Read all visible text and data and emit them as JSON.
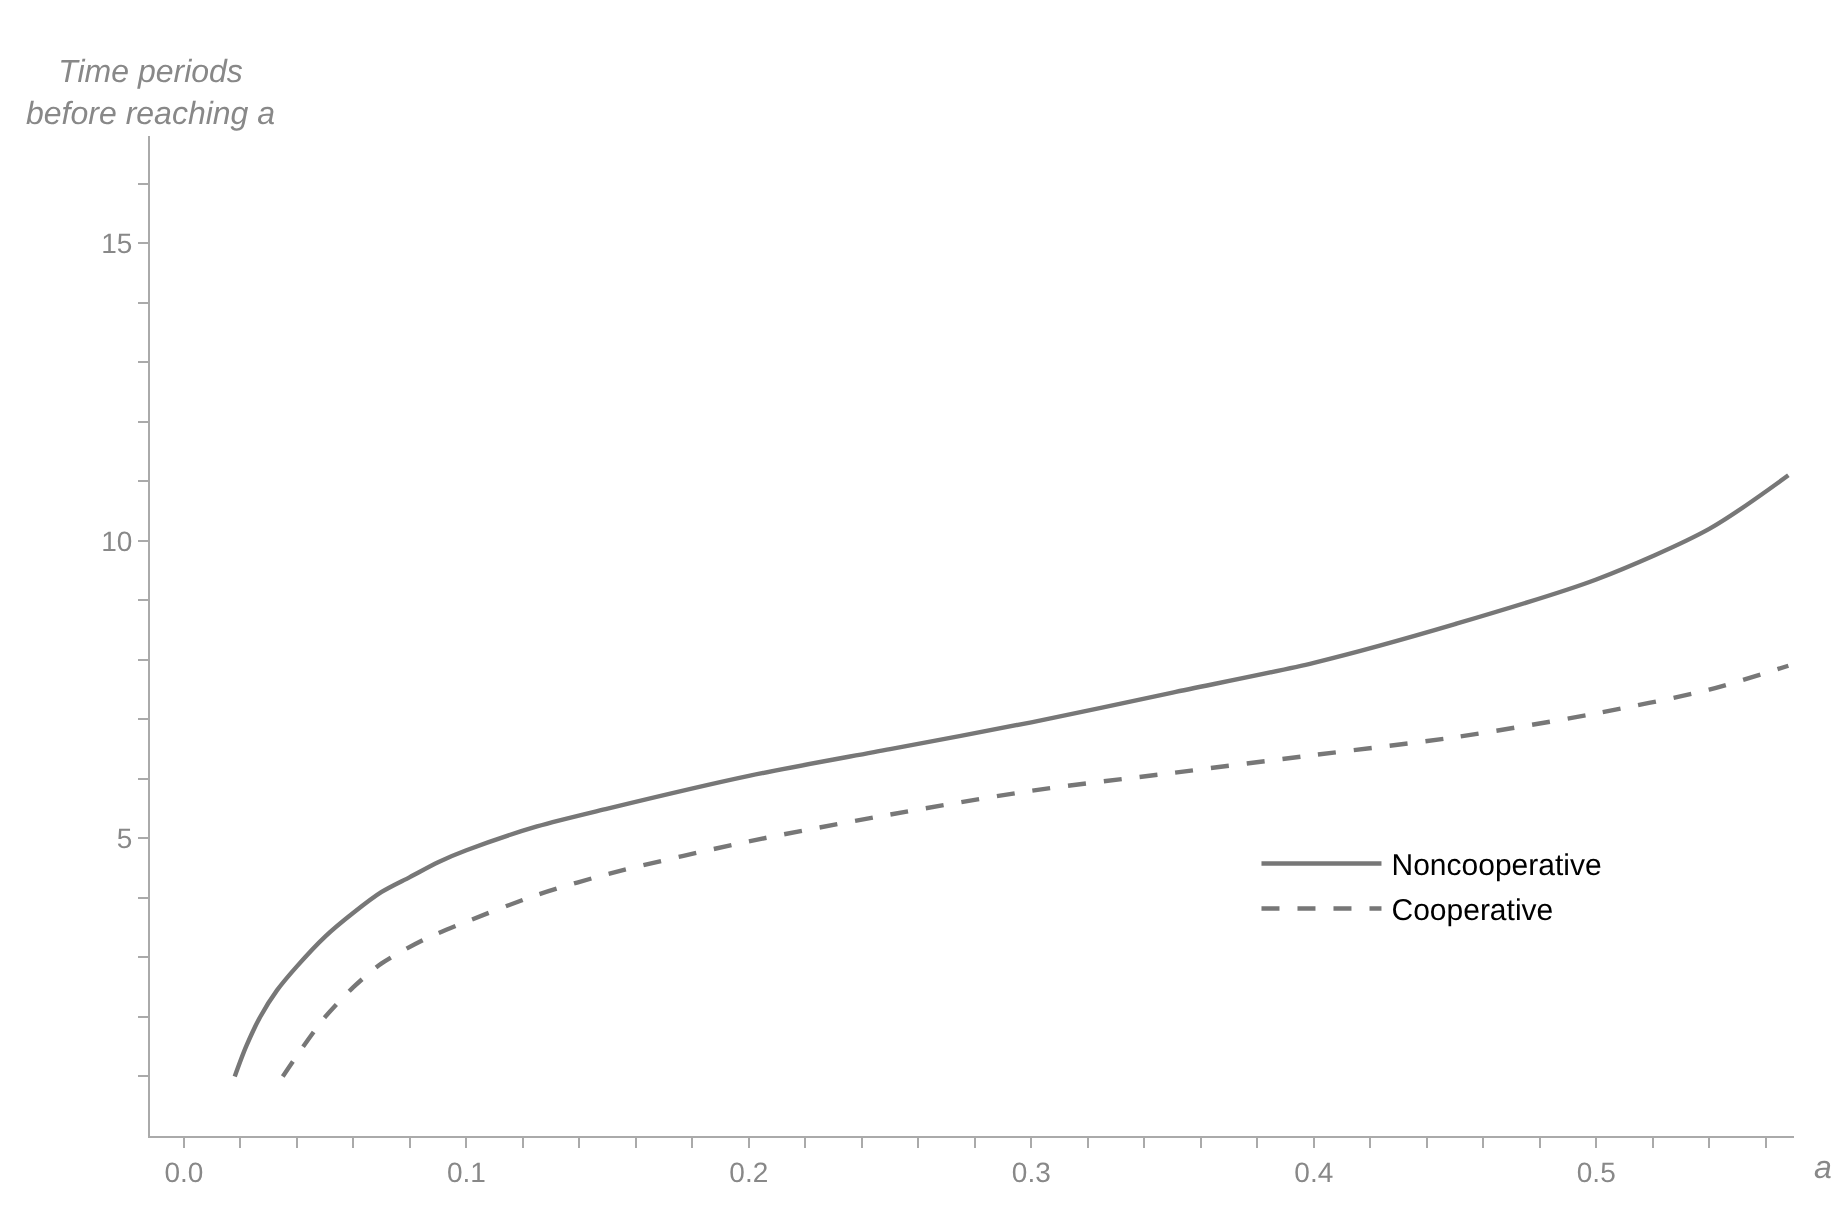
{
  "chart_data": {
    "type": "line",
    "xlabel": "a",
    "ylabel": "Time periods\nbefore reaching a",
    "xlim": [
      -0.012,
      0.57
    ],
    "ylim": [
      0,
      16.8
    ],
    "xticks": [
      {
        "value": 0.0,
        "label": "0.0"
      },
      {
        "value": 0.02,
        "label": null
      },
      {
        "value": 0.04,
        "label": null
      },
      {
        "value": 0.06,
        "label": null
      },
      {
        "value": 0.08,
        "label": null
      },
      0.1,
      {
        "value": 0.12,
        "label": null
      },
      {
        "value": 0.14,
        "label": null
      },
      {
        "value": 0.16,
        "label": null
      },
      {
        "value": 0.18,
        "label": null
      },
      0.2,
      {
        "value": 0.22,
        "label": null
      },
      {
        "value": 0.24,
        "label": null
      },
      {
        "value": 0.26,
        "label": null
      },
      {
        "value": 0.28,
        "label": null
      },
      0.3,
      {
        "value": 0.32,
        "label": null
      },
      {
        "value": 0.34,
        "label": null
      },
      {
        "value": 0.36,
        "label": null
      },
      {
        "value": 0.38,
        "label": null
      },
      0.4,
      {
        "value": 0.42,
        "label": null
      },
      {
        "value": 0.44,
        "label": null
      },
      {
        "value": 0.46,
        "label": null
      },
      {
        "value": 0.48,
        "label": null
      },
      0.5,
      {
        "value": 0.52,
        "label": null
      },
      {
        "value": 0.54,
        "label": null
      },
      {
        "value": 0.56,
        "label": null
      }
    ],
    "yticks": [
      {
        "value": 1,
        "label": null
      },
      {
        "value": 2,
        "label": null
      },
      {
        "value": 3,
        "label": null
      },
      {
        "value": 4,
        "label": null
      },
      5,
      {
        "value": 6,
        "label": null
      },
      {
        "value": 7,
        "label": null
      },
      {
        "value": 8,
        "label": null
      },
      {
        "value": 9,
        "label": null
      },
      10,
      {
        "value": 11,
        "label": null
      },
      {
        "value": 12,
        "label": null
      },
      {
        "value": 13,
        "label": null
      },
      {
        "value": 14,
        "label": null
      },
      15,
      {
        "value": 16,
        "label": null
      }
    ],
    "legend": "right",
    "marker": "none",
    "series": [
      {
        "name": "Noncooperative",
        "color": "#777777",
        "line_style": "solid",
        "x": [
          0.018,
          0.022,
          0.027,
          0.033,
          0.04,
          0.05,
          0.06,
          0.07,
          0.08,
          0.09,
          0.1,
          0.125,
          0.15,
          0.2,
          0.25,
          0.3,
          0.35,
          0.4,
          0.45,
          0.5,
          0.54,
          0.568
        ],
        "values": [
          1.0,
          1.5,
          2.0,
          2.45,
          2.85,
          3.35,
          3.75,
          4.1,
          4.35,
          4.6,
          4.8,
          5.2,
          5.5,
          6.05,
          6.5,
          6.95,
          7.45,
          7.95,
          8.6,
          9.35,
          10.2,
          11.1
        ]
      },
      {
        "name": "Cooperative",
        "color": "#777777",
        "line_style": "dashed",
        "x": [
          0.035,
          0.04,
          0.05,
          0.06,
          0.07,
          0.085,
          0.1,
          0.125,
          0.15,
          0.2,
          0.25,
          0.3,
          0.35,
          0.4,
          0.45,
          0.5,
          0.54,
          0.568
        ],
        "values": [
          1.0,
          1.35,
          2.0,
          2.5,
          2.9,
          3.3,
          3.6,
          4.05,
          4.4,
          4.95,
          5.4,
          5.8,
          6.1,
          6.4,
          6.7,
          7.1,
          7.5,
          7.9
        ]
      }
    ]
  }
}
